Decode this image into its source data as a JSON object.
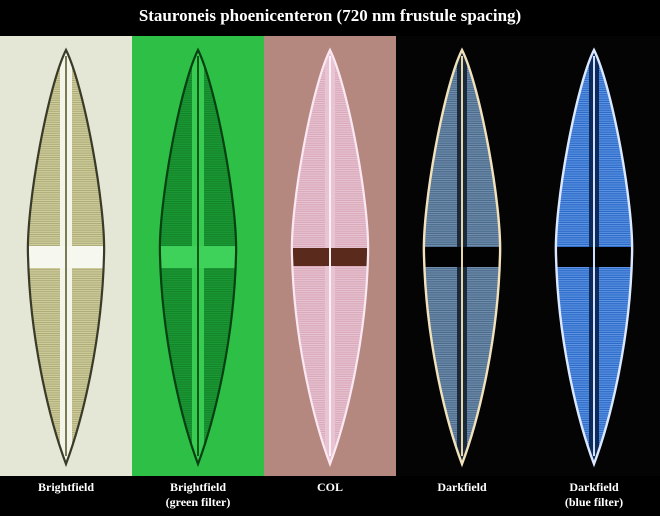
{
  "title": "Stauroneis phoenicenteron (720 nm frustule spacing)",
  "panels": [
    {
      "label_line1": "Brightfield",
      "label_line2": ""
    },
    {
      "label_line1": "Brightfield",
      "label_line2": "(green filter)"
    },
    {
      "label_line1": "COL",
      "label_line2": ""
    },
    {
      "label_line1": "Darkfield",
      "label_line2": ""
    },
    {
      "label_line1": "Darkfield",
      "label_line2": "(blue filter)"
    }
  ],
  "colors": {
    "brightfield_bg": "#e6e6d8",
    "green_bg": "#2fc046",
    "col_bg": "#b58a82",
    "darkfield_bg": "#050505"
  }
}
